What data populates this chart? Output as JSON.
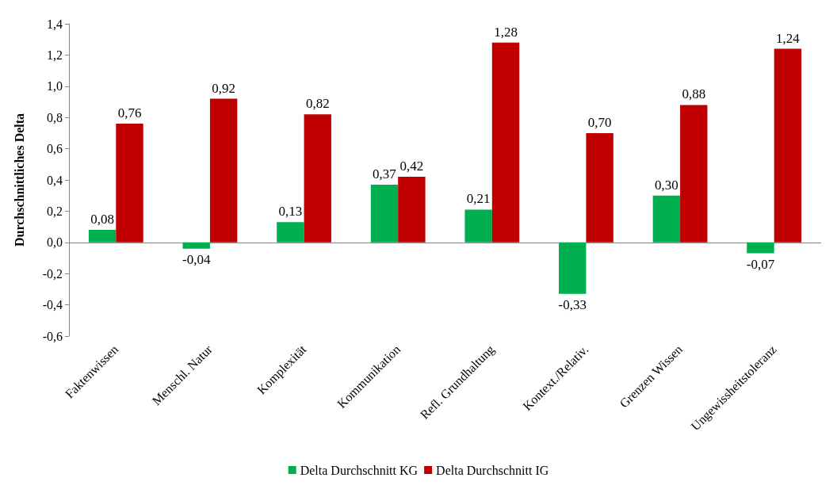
{
  "chart_data": {
    "type": "bar",
    "ylabel": "Durchschnittliches Delta",
    "categories": [
      "Faktenwissen",
      "Menschl. Natur",
      "Komplexität",
      "Kommunikation",
      "Refl. Grundhaltung",
      "Kontext./Relativ.",
      "Grenzen Wissen",
      "Ungewissheitstoleranz"
    ],
    "series": [
      {
        "name": "Delta Durchschnitt KG",
        "color": "#00b050",
        "values": [
          0.08,
          -0.04,
          0.13,
          0.37,
          0.21,
          -0.33,
          0.3,
          -0.07
        ],
        "value_labels": [
          "0,08",
          "-0,04",
          "0,13",
          "0,37",
          "0,21",
          "-0,33",
          "0,30",
          "-0,07"
        ]
      },
      {
        "name": "Delta Durchschnitt IG",
        "color": "#c00000",
        "values": [
          0.76,
          0.92,
          0.82,
          0.42,
          1.28,
          0.7,
          0.88,
          1.24
        ],
        "value_labels": [
          "0,76",
          "0,92",
          "0,82",
          "0,42",
          "1,28",
          "0,70",
          "0,88",
          "1,24"
        ]
      }
    ],
    "ylim": [
      -0.6,
      1.4
    ],
    "yticks": [
      {
        "value": -0.6,
        "label": "-0,6"
      },
      {
        "value": -0.4,
        "label": "-0,4"
      },
      {
        "value": -0.2,
        "label": "-0,2"
      },
      {
        "value": 0,
        "label": "0,0"
      },
      {
        "value": 0.2,
        "label": "0,2"
      },
      {
        "value": 0.4,
        "label": "0,4"
      },
      {
        "value": 0.6,
        "label": "0,6"
      },
      {
        "value": 0.8,
        "label": "0,8"
      },
      {
        "value": 1.0,
        "label": "1,0"
      },
      {
        "value": 1.2,
        "label": "1,2"
      },
      {
        "value": 1.4,
        "label": "1,4"
      }
    ],
    "legend": "bottom"
  }
}
